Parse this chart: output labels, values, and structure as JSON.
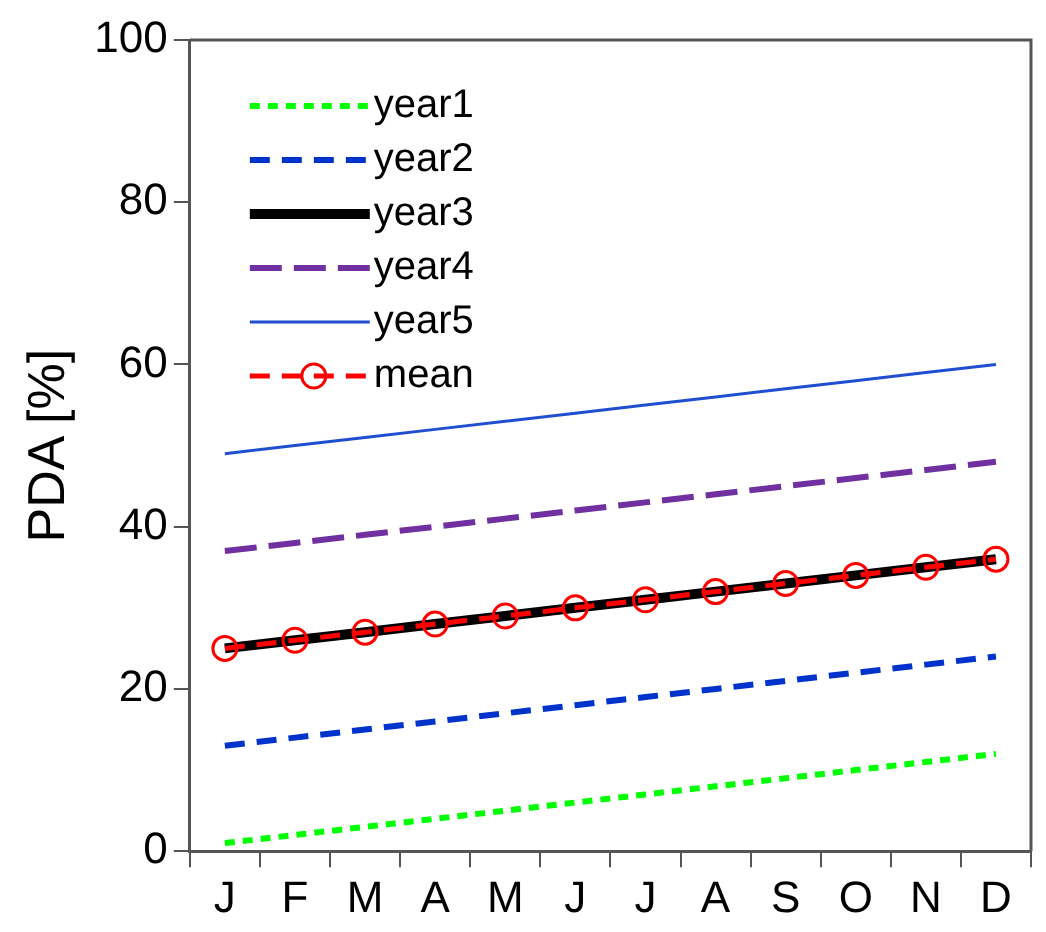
{
  "chart_data": {
    "type": "line",
    "ylabel": "PDA [%]",
    "categories": [
      "J",
      "F",
      "M",
      "A",
      "M",
      "J",
      "J",
      "A",
      "S",
      "O",
      "N",
      "D"
    ],
    "ylim": [
      0,
      100
    ],
    "yticks": [
      0,
      20,
      40,
      60,
      80,
      100
    ],
    "grid": false,
    "legend": "top left",
    "series": [
      {
        "name": "year1",
        "color": "#00ff00",
        "line_style": "dotted",
        "marker": "none",
        "values": [
          1,
          2,
          3,
          4,
          5,
          6,
          7,
          8,
          9,
          10,
          11,
          12
        ]
      },
      {
        "name": "year2",
        "color": "#0033cc",
        "line_style": "dashed",
        "marker": "none",
        "values": [
          13,
          14,
          15,
          16,
          17,
          18,
          19,
          20,
          21,
          22,
          23,
          24
        ]
      },
      {
        "name": "year3",
        "color": "#000000",
        "line_style": "solid",
        "marker": "none",
        "values": [
          25,
          26,
          27,
          28,
          29,
          30,
          31,
          32,
          33,
          34,
          35,
          36
        ]
      },
      {
        "name": "year4",
        "color": "#7030a0",
        "line_style": "longdash",
        "marker": "none",
        "values": [
          37,
          38,
          39,
          40,
          41,
          42,
          43,
          44,
          45,
          46,
          47,
          48
        ]
      },
      {
        "name": "year5",
        "color": "#1f4fd0",
        "line_style": "solid",
        "marker": "none",
        "values": [
          49,
          50,
          51,
          52,
          53,
          54,
          55,
          56,
          57,
          58,
          59,
          60
        ]
      },
      {
        "name": "mean",
        "color": "#ff0000",
        "line_style": "dashed",
        "marker": "circle",
        "values": [
          25,
          26,
          27,
          28,
          29,
          30,
          31,
          32,
          33,
          34,
          35,
          36
        ]
      }
    ]
  }
}
